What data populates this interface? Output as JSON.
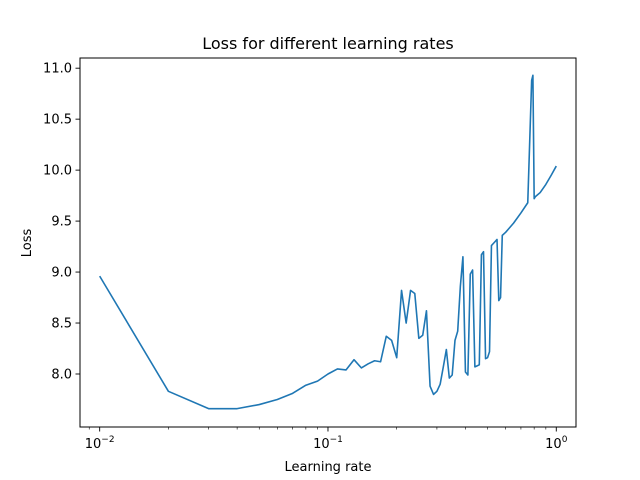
{
  "chart_data": {
    "type": "line",
    "title": "Loss for different learning rates",
    "xlabel": "Learning rate",
    "ylabel": "Loss",
    "xscale": "log",
    "xlim": [
      0.0082,
      1.22
    ],
    "ylim": [
      7.48,
      11.1
    ],
    "grid": false,
    "legend": "none",
    "line_color": "#1f77b4",
    "x_ticks": [
      {
        "value": 0.01,
        "base": "10",
        "exp": "−2"
      },
      {
        "value": 0.1,
        "base": "10",
        "exp": "−1"
      },
      {
        "value": 1,
        "base": "10",
        "exp": "0"
      }
    ],
    "y_ticks": [
      {
        "value": 8.0,
        "label": "8.0"
      },
      {
        "value": 8.5,
        "label": "8.5"
      },
      {
        "value": 9.0,
        "label": "9.0"
      },
      {
        "value": 9.5,
        "label": "9.5"
      },
      {
        "value": 10.0,
        "label": "10.0"
      },
      {
        "value": 10.5,
        "label": "10.5"
      },
      {
        "value": 11.0,
        "label": "11.0"
      }
    ],
    "series": [
      {
        "x": [
          0.01,
          0.02,
          0.03,
          0.04,
          0.05,
          0.06,
          0.07,
          0.08,
          0.09,
          0.1,
          0.11,
          0.12,
          0.13,
          0.14,
          0.15,
          0.16,
          0.17,
          0.18,
          0.19,
          0.2,
          0.21,
          0.22,
          0.23,
          0.24,
          0.25,
          0.26,
          0.27,
          0.28,
          0.29,
          0.3,
          0.31,
          0.32,
          0.33,
          0.34,
          0.35,
          0.36,
          0.37,
          0.38,
          0.39,
          0.4,
          0.41,
          0.42,
          0.43,
          0.44,
          0.45,
          0.46,
          0.47,
          0.48,
          0.49,
          0.5,
          0.51,
          0.52,
          0.53,
          0.54,
          0.55,
          0.56,
          0.57,
          0.58,
          0.6,
          0.65,
          0.7,
          0.75,
          0.78,
          0.79,
          0.8,
          0.81,
          0.85,
          0.9,
          0.95,
          1.0
        ],
        "y": [
          8.96,
          7.83,
          7.66,
          7.66,
          7.7,
          7.75,
          7.81,
          7.89,
          7.93,
          8.0,
          8.05,
          8.04,
          8.14,
          8.06,
          8.1,
          8.13,
          8.12,
          8.37,
          8.33,
          8.16,
          8.82,
          8.5,
          8.82,
          8.79,
          8.35,
          8.38,
          8.62,
          7.88,
          7.8,
          7.83,
          7.9,
          8.07,
          8.24,
          7.96,
          7.99,
          8.33,
          8.42,
          8.86,
          9.15,
          8.02,
          7.99,
          8.98,
          9.02,
          8.07,
          8.08,
          8.09,
          9.17,
          9.2,
          8.15,
          8.16,
          8.22,
          9.26,
          9.28,
          9.3,
          9.32,
          8.72,
          8.75,
          9.36,
          9.39,
          9.48,
          9.58,
          9.68,
          10.88,
          10.93,
          9.72,
          9.74,
          9.78,
          9.86,
          9.95,
          10.04
        ]
      }
    ]
  }
}
